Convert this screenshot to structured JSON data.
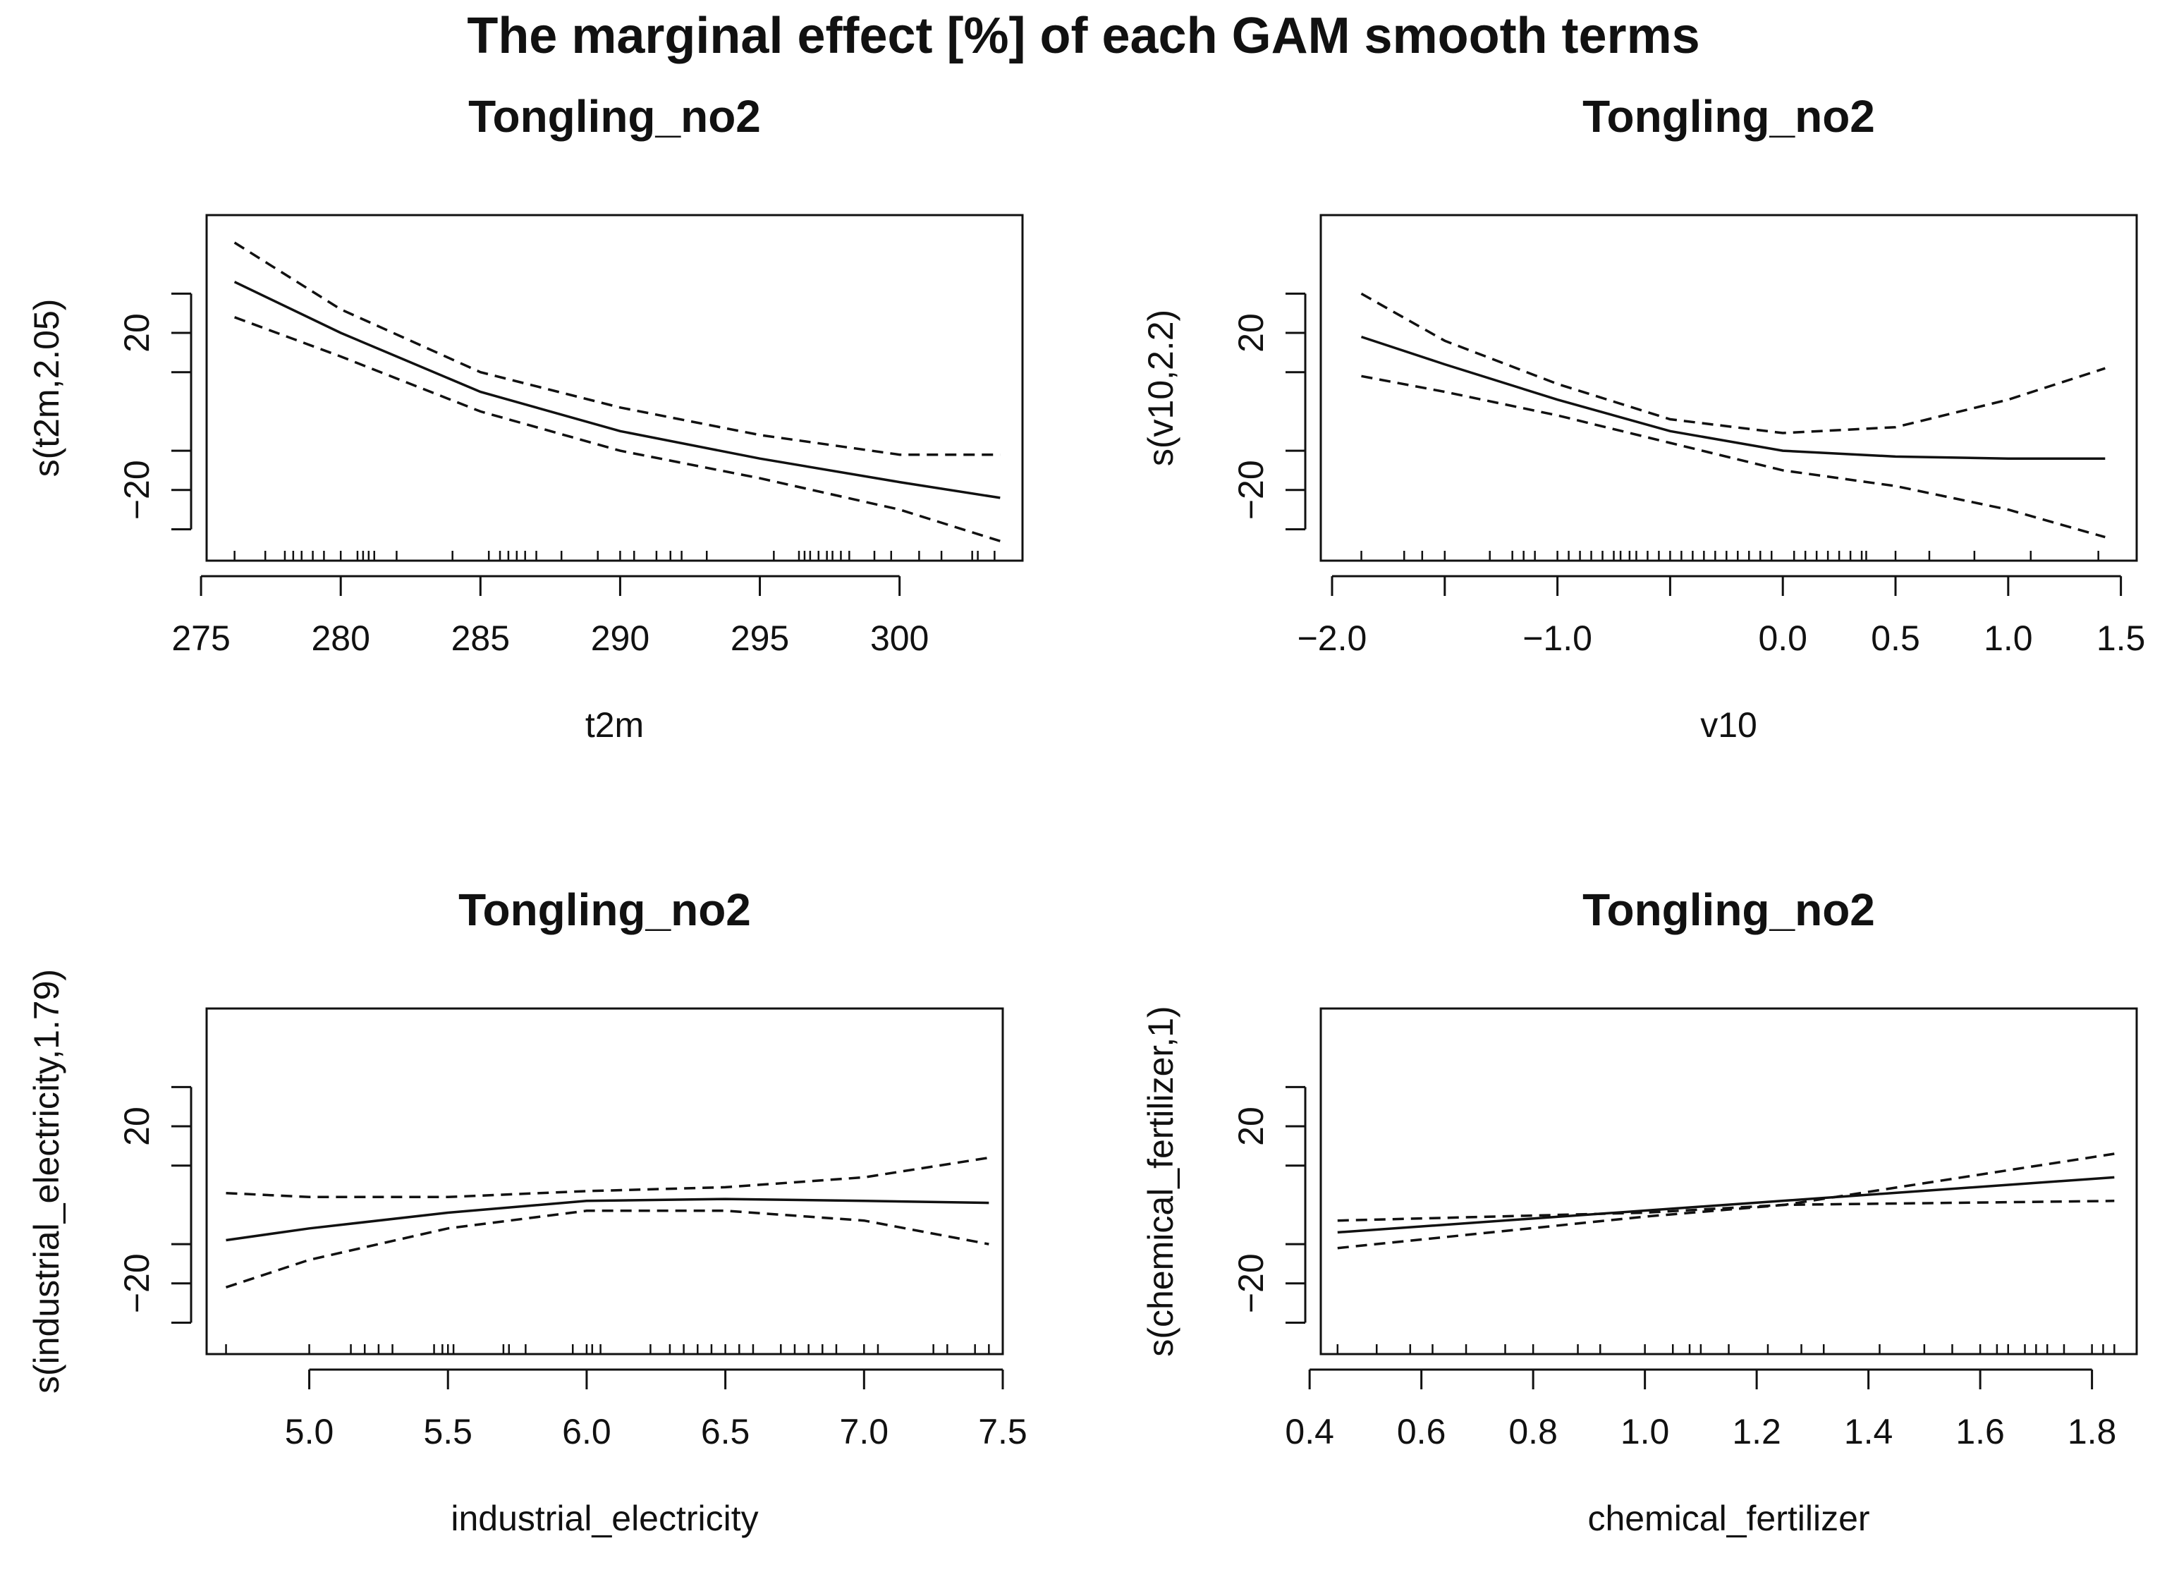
{
  "figure": {
    "title": "The marginal effect [%] of each GAM smooth terms"
  },
  "chart_data": [
    {
      "type": "line",
      "title": "Tongling_no2",
      "xlabel": "t2m",
      "ylabel": "s(t2m,2.05)",
      "xlim": [
        275.2,
        304.4
      ],
      "ylim": [
        -38,
        50
      ],
      "xticks": [
        275,
        280,
        285,
        290,
        295,
        300
      ],
      "xtick_labels": [
        "275",
        "280",
        "285",
        "290",
        "295",
        "300"
      ],
      "yticks": [
        -20,
        20
      ],
      "ytick_labels": [
        "−20",
        "20"
      ],
      "series": [
        {
          "name": "fit",
          "style": "solid",
          "x": [
            276.2,
            280,
            285,
            290,
            295,
            300,
            303.6
          ],
          "y": [
            33,
            20,
            5,
            -5,
            -12,
            -18,
            -22
          ]
        },
        {
          "name": "upper",
          "style": "dashed",
          "x": [
            276.2,
            280,
            285,
            290,
            295,
            300,
            303.6
          ],
          "y": [
            43,
            26,
            10,
            1,
            -6,
            -11,
            -11
          ]
        },
        {
          "name": "lower",
          "style": "dashed",
          "x": [
            276.2,
            280,
            285,
            290,
            295,
            300,
            303.6
          ],
          "y": [
            24,
            14,
            0,
            -10,
            -17,
            -25,
            -33
          ]
        }
      ],
      "rug": [
        276.2,
        277.3,
        278,
        278.3,
        278.6,
        279,
        279.4,
        280,
        280.6,
        280.8,
        281,
        281.2,
        282,
        284,
        285.3,
        285.7,
        286,
        286.3,
        286.6,
        287,
        287.9,
        289.2,
        290,
        290.5,
        291.3,
        291.8,
        292.2,
        293.1,
        295.5,
        296.4,
        296.6,
        296.8,
        297.1,
        297.4,
        297.6,
        297.9,
        298.2,
        299.1,
        299.7,
        300.7,
        301.5,
        302.6,
        302.8,
        303.4
      ]
    },
    {
      "type": "line",
      "title": "Tongling_no2",
      "xlabel": "v10",
      "ylabel": "s(v10,2.2)",
      "xlim": [
        -2.05,
        1.57
      ],
      "ylim": [
        -38,
        50
      ],
      "xticks": [
        -2.0,
        -1.5,
        -1.0,
        -0.5,
        0.0,
        0.5,
        1.0,
        1.5
      ],
      "xtick_labels": [
        "−2.0",
        "",
        "−1.0",
        "",
        "0.0",
        "0.5",
        "1.0",
        "1.5"
      ],
      "yticks": [
        -20,
        20
      ],
      "ytick_labels": [
        "−20",
        "20"
      ],
      "series": [
        {
          "name": "fit",
          "style": "solid",
          "x": [
            -1.87,
            -1.5,
            -1.0,
            -0.5,
            0.0,
            0.5,
            1.0,
            1.43
          ],
          "y": [
            19,
            12,
            3,
            -5,
            -10,
            -11.5,
            -12,
            -12
          ]
        },
        {
          "name": "upper",
          "style": "dashed",
          "x": [
            -1.87,
            -1.5,
            -1.0,
            -0.5,
            0.0,
            0.5,
            1.0,
            1.43
          ],
          "y": [
            30,
            18,
            7,
            -2,
            -5.5,
            -4,
            3,
            11
          ]
        },
        {
          "name": "lower",
          "style": "dashed",
          "x": [
            -1.87,
            -1.5,
            -1.0,
            -0.5,
            0.0,
            0.5,
            1.0,
            1.43
          ],
          "y": [
            9,
            5,
            -1,
            -8,
            -15,
            -19,
            -25,
            -32
          ]
        }
      ],
      "rug": [
        -1.87,
        -1.68,
        -1.6,
        -1.5,
        -1.3,
        -1.2,
        -1.15,
        -1.1,
        -1.0,
        -0.95,
        -0.9,
        -0.85,
        -0.8,
        -0.75,
        -0.72,
        -0.68,
        -0.65,
        -0.6,
        -0.55,
        -0.5,
        -0.45,
        -0.4,
        -0.35,
        -0.3,
        -0.25,
        -0.2,
        -0.15,
        -0.1,
        -0.05,
        0.05,
        0.1,
        0.15,
        0.2,
        0.25,
        0.3,
        0.35,
        0.37,
        0.5,
        0.65,
        0.85,
        1.1,
        1.4
      ]
    },
    {
      "type": "line",
      "title": "Tongling_no2",
      "xlabel": "industrial_electricity",
      "ylabel": "s(industrial_electricity,1.79)",
      "xlim": [
        4.63,
        7.5
      ],
      "ylim": [
        -38,
        50
      ],
      "xticks": [
        5.0,
        5.5,
        6.0,
        6.5,
        7.0,
        7.5
      ],
      "xtick_labels": [
        "5.0",
        "5.5",
        "6.0",
        "6.5",
        "7.0",
        "7.5"
      ],
      "yticks": [
        -20,
        20
      ],
      "ytick_labels": [
        "−20",
        "20"
      ],
      "series": [
        {
          "name": "fit",
          "style": "solid",
          "x": [
            4.7,
            5.0,
            5.5,
            6.0,
            6.5,
            7.0,
            7.45
          ],
          "y": [
            -9,
            -6,
            -2,
            1,
            1.5,
            1,
            0.5
          ]
        },
        {
          "name": "upper",
          "style": "dashed",
          "x": [
            4.7,
            5.0,
            5.5,
            6.0,
            6.5,
            7.0,
            7.45
          ],
          "y": [
            3,
            2,
            2,
            3.5,
            4.5,
            7,
            12
          ]
        },
        {
          "name": "lower",
          "style": "dashed",
          "x": [
            4.7,
            5.0,
            5.5,
            6.0,
            6.5,
            7.0,
            7.45
          ],
          "y": [
            -21,
            -14,
            -6,
            -1.5,
            -1.5,
            -4,
            -10
          ]
        }
      ],
      "rug": [
        4.7,
        5.0,
        5.15,
        5.2,
        5.25,
        5.3,
        5.45,
        5.48,
        5.5,
        5.52,
        5.7,
        5.72,
        5.78,
        5.95,
        6.0,
        6.02,
        6.05,
        6.23,
        6.3,
        6.35,
        6.4,
        6.45,
        6.5,
        6.55,
        6.6,
        6.7,
        6.75,
        6.8,
        6.85,
        6.9,
        7.0,
        7.05,
        7.25,
        7.3,
        7.4,
        7.45
      ]
    },
    {
      "type": "line",
      "title": "Tongling_no2",
      "xlabel": "chemical_fertilizer",
      "ylabel": "s(chemical_fertilizer,1)",
      "xlim": [
        0.42,
        1.88
      ],
      "ylim": [
        -38,
        50
      ],
      "xticks": [
        0.4,
        0.6,
        0.8,
        1.0,
        1.2,
        1.4,
        1.6,
        1.8
      ],
      "xtick_labels": [
        "0.4",
        "0.6",
        "0.8",
        "1.0",
        "1.2",
        "1.4",
        "1.6",
        "1.8"
      ],
      "yticks": [
        -20,
        20
      ],
      "ytick_labels": [
        "−20",
        "20"
      ],
      "series": [
        {
          "name": "fit",
          "style": "solid",
          "x": [
            0.45,
            1.84
          ],
          "y": [
            -7,
            7
          ]
        },
        {
          "name": "upper",
          "style": "dashed",
          "x": [
            0.45,
            1.0,
            1.25,
            1.84
          ],
          "y": [
            -4,
            -2,
            0,
            13
          ]
        },
        {
          "name": "lower",
          "style": "dashed",
          "x": [
            0.45,
            1.0,
            1.25,
            1.84
          ],
          "y": [
            -11,
            -3,
            0,
            1
          ]
        }
      ],
      "rug": [
        0.45,
        0.52,
        0.58,
        0.62,
        0.68,
        0.75,
        0.8,
        0.88,
        0.92,
        1.0,
        1.05,
        1.08,
        1.1,
        1.15,
        1.22,
        1.28,
        1.32,
        1.42,
        1.5,
        1.55,
        1.6,
        1.63,
        1.65,
        1.68,
        1.7,
        1.72,
        1.75,
        1.8,
        1.82,
        1.84
      ]
    }
  ]
}
